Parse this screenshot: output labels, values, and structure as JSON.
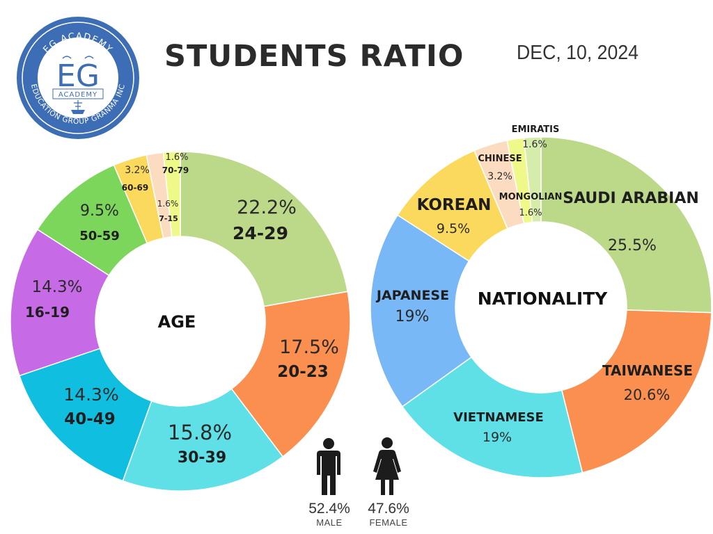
{
  "header": {
    "title": "STUDENTS RATIO",
    "date": "DEC, 10, 2024"
  },
  "logo": {
    "top_text": "EG ACADEMY",
    "main": "EG",
    "sub": "ACADEMY",
    "bottom_text": "EDUCATION GROUP GRANMA INC",
    "color": "#3d6db5"
  },
  "chart_data": [
    {
      "type": "pie",
      "center_label": "AGE",
      "slices": [
        {
          "label": "24-29",
          "value": 22.2,
          "display": "22.2%",
          "color": "#bcd98a"
        },
        {
          "label": "20-23",
          "value": 17.5,
          "display": "17.5%",
          "color": "#fb8f4f"
        },
        {
          "label": "30-39",
          "value": 15.8,
          "display": "15.8%",
          "color": "#5fe0e7"
        },
        {
          "label": "40-49",
          "value": 14.3,
          "display": "14.3%",
          "color": "#10bfe0"
        },
        {
          "label": "16-19",
          "value": 14.3,
          "display": "14.3%",
          "color": "#c66ae6"
        },
        {
          "label": "50-59",
          "value": 9.5,
          "display": "9.5%",
          "color": "#7dd65c"
        },
        {
          "label": "60-69",
          "value": 3.2,
          "display": "3.2%",
          "color": "#fbd95c"
        },
        {
          "label": "7-15",
          "value": 1.6,
          "display": "1.6%",
          "color": "#fcdcc0"
        },
        {
          "label": "70-79",
          "value": 1.6,
          "display": "1.6%",
          "color": "#eef98a"
        }
      ]
    },
    {
      "type": "pie",
      "center_label": "NATIONALITY",
      "slices": [
        {
          "label": "SAUDI ARABIAN",
          "value": 25.5,
          "display": "25.5%",
          "color": "#bcd98a"
        },
        {
          "label": "TAIWANESE",
          "value": 20.6,
          "display": "20.6%",
          "color": "#fb8f4f"
        },
        {
          "label": "VIETNAMESE",
          "value": 19,
          "display": "19%",
          "color": "#5fe0e7"
        },
        {
          "label": "JAPANESE",
          "value": 19,
          "display": "19%",
          "color": "#79b8f7"
        },
        {
          "label": "KOREAN",
          "value": 9.5,
          "display": "9.5%",
          "color": "#fbd95c"
        },
        {
          "label": "CHINESE",
          "value": 3.2,
          "display": "3.2%",
          "color": "#fcdcc0"
        },
        {
          "label": "MONGOLIAN",
          "value": 1.6,
          "display": "1.6%",
          "color": "#eef98a"
        },
        {
          "label": "EMIRATIS",
          "value": 1.6,
          "display": "1.6%",
          "color": "#d6ecab"
        }
      ]
    }
  ],
  "gender": {
    "male": {
      "value": "52.4%",
      "label": "MALE"
    },
    "female": {
      "value": "47.6%",
      "label": "FEMALE"
    }
  }
}
